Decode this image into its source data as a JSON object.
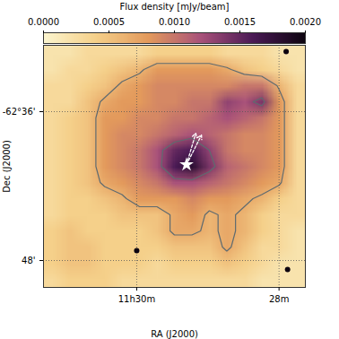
{
  "chart_data": {
    "type": "heatmap",
    "xlabel": "RA (J2000)",
    "ylabel": "Dec (J2000)",
    "xlim": [
      31.31,
      27.63
    ],
    "ylim": [
      30.65,
      50.17
    ],
    "xticks": [
      {
        "value": 30,
        "label": "11h30m"
      },
      {
        "value": 28,
        "label": "28m"
      }
    ],
    "yticks": [
      {
        "value": 36,
        "label": "-62°36'"
      },
      {
        "value": 48,
        "label": "48'"
      }
    ],
    "grid": true,
    "colorbar": {
      "label": "Flux density [mJy/beam]",
      "lim": [
        0,
        0.002
      ],
      "ticks": [
        {
          "value": 0,
          "label": "0.0000"
        },
        {
          "value": 0.0005,
          "label": "0.0005"
        },
        {
          "value": 0.001,
          "label": "0.0010"
        },
        {
          "value": 0.0015,
          "label": "0.0015"
        },
        {
          "value": 0.002,
          "label": "0.0020"
        }
      ]
    },
    "cells": [
      [
        0.0002,
        0.0002,
        0.0003,
        0.0003,
        0.0003,
        0.0003,
        0.0004,
        0.0004,
        0.0004,
        0.0004,
        0.0003,
        0.0003,
        0.0003,
        0.0002,
        0.0002
      ],
      [
        0.0002,
        0.0003,
        0.0003,
        0.0004,
        0.0005,
        0.0006,
        0.0008,
        0.0008,
        0.0008,
        0.0008,
        0.0007,
        0.0005,
        0.0004,
        0.0003,
        0.0002
      ],
      [
        0.0003,
        0.0003,
        0.0004,
        0.0005,
        0.0007,
        0.0008,
        0.0009,
        0.0009,
        0.0009,
        0.0009,
        0.0009,
        0.001,
        0.001,
        0.0006,
        0.0003
      ],
      [
        0.0003,
        0.0003,
        0.0005,
        0.0007,
        0.0008,
        0.0008,
        0.0009,
        0.0009,
        0.001,
        0.001,
        0.0013,
        0.0012,
        0.0014,
        0.0008,
        0.0003
      ],
      [
        0.0003,
        0.0004,
        0.0005,
        0.0008,
        0.0008,
        0.0009,
        0.0009,
        0.001,
        0.001,
        0.0011,
        0.0012,
        0.0011,
        0.001,
        0.0008,
        0.0003
      ],
      [
        0.0003,
        0.0004,
        0.0005,
        0.0008,
        0.0009,
        0.0009,
        0.001,
        0.0011,
        0.0012,
        0.0011,
        0.001,
        0.0009,
        0.0009,
        0.0008,
        0.0003
      ],
      [
        0.0003,
        0.0004,
        0.0005,
        0.0008,
        0.0009,
        0.001,
        0.0012,
        0.0015,
        0.0016,
        0.0013,
        0.001,
        0.0009,
        0.0009,
        0.0008,
        0.0003
      ],
      [
        0.0003,
        0.0004,
        0.0005,
        0.0008,
        0.0009,
        0.001,
        0.0012,
        0.0016,
        0.0018,
        0.0014,
        0.0011,
        0.001,
        0.0009,
        0.0008,
        0.0003
      ],
      [
        0.0003,
        0.0004,
        0.0005,
        0.0007,
        0.0008,
        0.0009,
        0.001,
        0.0012,
        0.0012,
        0.0011,
        0.001,
        0.0009,
        0.0008,
        0.0007,
        0.0003
      ],
      [
        0.0003,
        0.0004,
        0.0004,
        0.0005,
        0.0006,
        0.0008,
        0.0008,
        0.0008,
        0.0009,
        0.0008,
        0.0008,
        0.0007,
        0.0006,
        0.0004,
        0.0003
      ],
      [
        0.0003,
        0.0004,
        0.0004,
        0.0004,
        0.0005,
        0.0005,
        0.0005,
        0.0007,
        0.0008,
        0.0006,
        0.0007,
        0.0006,
        0.0004,
        0.0003,
        0.0003
      ],
      [
        0.0004,
        0.0005,
        0.0004,
        0.0004,
        0.0004,
        0.0004,
        0.0005,
        0.0007,
        0.0007,
        0.0006,
        0.0007,
        0.0006,
        0.0004,
        0.0003,
        0.0002
      ],
      [
        0.0004,
        0.0005,
        0.0005,
        0.0004,
        0.0004,
        0.0004,
        0.0004,
        0.0005,
        0.0005,
        0.0005,
        0.0007,
        0.0005,
        0.0003,
        0.0003,
        0.0002
      ],
      [
        0.0004,
        0.0005,
        0.0005,
        0.0004,
        0.0004,
        0.0004,
        0.0003,
        0.0004,
        0.0004,
        0.0004,
        0.0005,
        0.0004,
        0.0003,
        0.0002,
        0.0002
      ],
      [
        0.0003,
        0.0004,
        0.0004,
        0.0004,
        0.0003,
        0.0003,
        0.0003,
        0.0003,
        0.0003,
        0.0003,
        0.0003,
        0.0003,
        0.0002,
        0.0002,
        0.0002
      ]
    ],
    "contour_levels": [
      0.00065,
      0.0013
    ],
    "point_sources": {
      "x": [
        30.0,
        27.9,
        27.88
      ],
      "y": [
        47.21,
        31.16,
        48.73
      ]
    },
    "star": {
      "x": 29.3,
      "y": 40.27,
      "marker": "star"
    },
    "arrows": [
      {
        "x1": 29.3,
        "y1": 40.27,
        "x2": 29.09,
        "y2": 37.88
      },
      {
        "x1": 29.3,
        "y1": 40.27,
        "x2": 29.17,
        "y2": 37.74
      }
    ]
  }
}
